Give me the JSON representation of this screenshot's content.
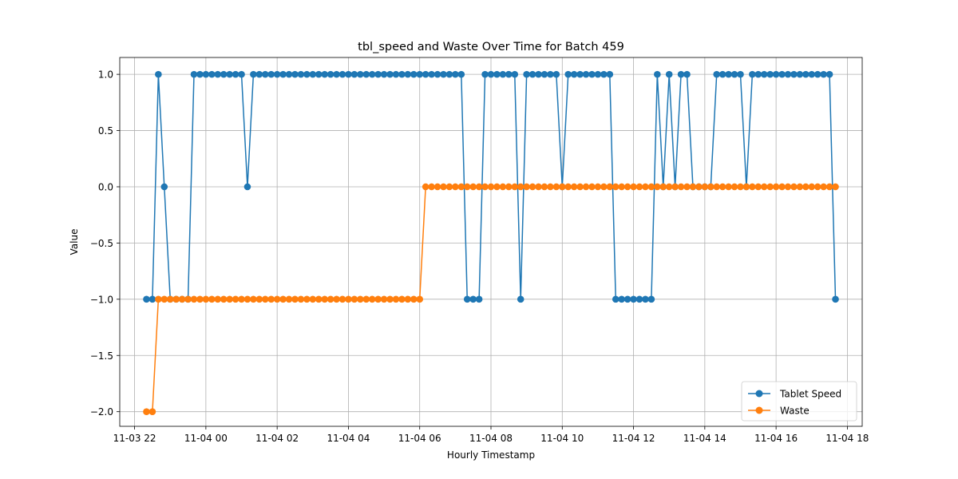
{
  "chart_data": {
    "type": "line",
    "title": "tbl_speed and Waste Over Time for Batch 459",
    "xlabel": "Hourly Timestamp",
    "ylabel": "Value",
    "ylim": [
      -2.13,
      1.15
    ],
    "xlim": [
      "2024-11-03 21:35",
      "2024-11-04 18:25"
    ],
    "xticks": [
      {
        "t": "2024-11-03 22:00",
        "label": "11-03 22"
      },
      {
        "t": "2024-11-04 00:00",
        "label": "11-04 00"
      },
      {
        "t": "2024-11-04 02:00",
        "label": "11-04 02"
      },
      {
        "t": "2024-11-04 04:00",
        "label": "11-04 04"
      },
      {
        "t": "2024-11-04 06:00",
        "label": "11-04 06"
      },
      {
        "t": "2024-11-04 08:00",
        "label": "11-04 08"
      },
      {
        "t": "2024-11-04 10:00",
        "label": "11-04 10"
      },
      {
        "t": "2024-11-04 12:00",
        "label": "11-04 12"
      },
      {
        "t": "2024-11-04 14:00",
        "label": "11-04 14"
      },
      {
        "t": "2024-11-04 16:00",
        "label": "11-04 16"
      },
      {
        "t": "2024-11-04 18:00",
        "label": "11-04 18"
      }
    ],
    "yticks": [
      {
        "v": -2.0,
        "label": "−2.0"
      },
      {
        "v": -1.5,
        "label": "−1.5"
      },
      {
        "v": -1.0,
        "label": "−1.0"
      },
      {
        "v": -0.5,
        "label": "−0.5"
      },
      {
        "v": 0.0,
        "label": "0.0"
      },
      {
        "v": 0.5,
        "label": "0.5"
      },
      {
        "v": 1.0,
        "label": "1.0"
      }
    ],
    "grid": true,
    "legend_position": "bottom-right",
    "x": [
      "2024-11-03 22:20",
      "2024-11-03 22:30",
      "2024-11-03 22:40",
      "2024-11-03 22:50",
      "2024-11-03 23:00",
      "2024-11-03 23:10",
      "2024-11-03 23:20",
      "2024-11-03 23:30",
      "2024-11-03 23:40",
      "2024-11-03 23:50",
      "2024-11-04 00:00",
      "2024-11-04 00:10",
      "2024-11-04 00:20",
      "2024-11-04 00:30",
      "2024-11-04 00:40",
      "2024-11-04 00:50",
      "2024-11-04 01:00",
      "2024-11-04 01:10",
      "2024-11-04 01:20",
      "2024-11-04 01:30",
      "2024-11-04 01:40",
      "2024-11-04 01:50",
      "2024-11-04 02:00",
      "2024-11-04 02:10",
      "2024-11-04 02:20",
      "2024-11-04 02:30",
      "2024-11-04 02:40",
      "2024-11-04 02:50",
      "2024-11-04 03:00",
      "2024-11-04 03:10",
      "2024-11-04 03:20",
      "2024-11-04 03:30",
      "2024-11-04 03:40",
      "2024-11-04 03:50",
      "2024-11-04 04:00",
      "2024-11-04 04:10",
      "2024-11-04 04:20",
      "2024-11-04 04:30",
      "2024-11-04 04:40",
      "2024-11-04 04:50",
      "2024-11-04 05:00",
      "2024-11-04 05:10",
      "2024-11-04 05:20",
      "2024-11-04 05:30",
      "2024-11-04 05:40",
      "2024-11-04 05:50",
      "2024-11-04 06:00",
      "2024-11-04 06:10",
      "2024-11-04 06:20",
      "2024-11-04 06:30",
      "2024-11-04 06:40",
      "2024-11-04 06:50",
      "2024-11-04 07:00",
      "2024-11-04 07:10",
      "2024-11-04 07:20",
      "2024-11-04 07:30",
      "2024-11-04 07:40",
      "2024-11-04 07:50",
      "2024-11-04 08:00",
      "2024-11-04 08:10",
      "2024-11-04 08:20",
      "2024-11-04 08:30",
      "2024-11-04 08:40",
      "2024-11-04 08:50",
      "2024-11-04 09:00",
      "2024-11-04 09:10",
      "2024-11-04 09:20",
      "2024-11-04 09:30",
      "2024-11-04 09:40",
      "2024-11-04 09:50",
      "2024-11-04 10:00",
      "2024-11-04 10:10",
      "2024-11-04 10:20",
      "2024-11-04 10:30",
      "2024-11-04 10:40",
      "2024-11-04 10:50",
      "2024-11-04 11:00",
      "2024-11-04 11:10",
      "2024-11-04 11:20",
      "2024-11-04 11:30",
      "2024-11-04 11:40",
      "2024-11-04 11:50",
      "2024-11-04 12:00",
      "2024-11-04 12:10",
      "2024-11-04 12:20",
      "2024-11-04 12:30",
      "2024-11-04 12:40",
      "2024-11-04 12:50",
      "2024-11-04 13:00",
      "2024-11-04 13:10",
      "2024-11-04 13:20",
      "2024-11-04 13:30",
      "2024-11-04 13:40",
      "2024-11-04 13:50",
      "2024-11-04 14:00",
      "2024-11-04 14:10",
      "2024-11-04 14:20",
      "2024-11-04 14:30",
      "2024-11-04 14:40",
      "2024-11-04 14:50",
      "2024-11-04 15:00",
      "2024-11-04 15:10",
      "2024-11-04 15:20",
      "2024-11-04 15:30",
      "2024-11-04 15:40",
      "2024-11-04 15:50",
      "2024-11-04 16:00",
      "2024-11-04 16:10",
      "2024-11-04 16:20",
      "2024-11-04 16:30",
      "2024-11-04 16:40",
      "2024-11-04 16:50",
      "2024-11-04 17:00",
      "2024-11-04 17:10",
      "2024-11-04 17:20",
      "2024-11-04 17:30",
      "2024-11-04 17:40"
    ],
    "series": [
      {
        "name": "Tablet Speed",
        "color": "#1f77b4",
        "values": [
          -1,
          -1,
          1,
          0,
          -1,
          -1,
          -1,
          -1,
          1,
          1,
          1,
          1,
          1,
          1,
          1,
          1,
          1,
          0,
          1,
          1,
          1,
          1,
          1,
          1,
          1,
          1,
          1,
          1,
          1,
          1,
          1,
          1,
          1,
          1,
          1,
          1,
          1,
          1,
          1,
          1,
          1,
          1,
          1,
          1,
          1,
          1,
          1,
          1,
          1,
          1,
          1,
          1,
          1,
          1,
          -1,
          -1,
          -1,
          1,
          1,
          1,
          1,
          1,
          1,
          -1,
          1,
          1,
          1,
          1,
          1,
          1,
          0,
          1,
          1,
          1,
          1,
          1,
          1,
          1,
          1,
          -1,
          -1,
          -1,
          -1,
          -1,
          -1,
          -1,
          1,
          0,
          1,
          0,
          1,
          1,
          0,
          0,
          0,
          0,
          1,
          1,
          1,
          1,
          1,
          0,
          1,
          1,
          1,
          1,
          1,
          1,
          1,
          1,
          1,
          1,
          1,
          1,
          1,
          1,
          -1
        ]
      },
      {
        "name": "Waste",
        "color": "#ff7f0e",
        "values": [
          -2,
          -2,
          -1,
          -1,
          -1,
          -1,
          -1,
          -1,
          -1,
          -1,
          -1,
          -1,
          -1,
          -1,
          -1,
          -1,
          -1,
          -1,
          -1,
          -1,
          -1,
          -1,
          -1,
          -1,
          -1,
          -1,
          -1,
          -1,
          -1,
          -1,
          -1,
          -1,
          -1,
          -1,
          -1,
          -1,
          -1,
          -1,
          -1,
          -1,
          -1,
          -1,
          -1,
          -1,
          -1,
          -1,
          -1,
          0,
          0,
          0,
          0,
          0,
          0,
          0,
          0,
          0,
          0,
          0,
          0,
          0,
          0,
          0,
          0,
          0,
          0,
          0,
          0,
          0,
          0,
          0,
          0,
          0,
          0,
          0,
          0,
          0,
          0,
          0,
          0,
          0,
          0,
          0,
          0,
          0,
          0,
          0,
          0,
          0,
          0,
          0,
          0,
          0,
          0,
          0,
          0,
          0,
          0,
          0,
          0,
          0,
          0,
          0,
          0,
          0,
          0,
          0,
          0,
          0,
          0,
          0,
          0,
          0,
          0,
          0,
          0,
          0,
          0
        ]
      }
    ]
  }
}
